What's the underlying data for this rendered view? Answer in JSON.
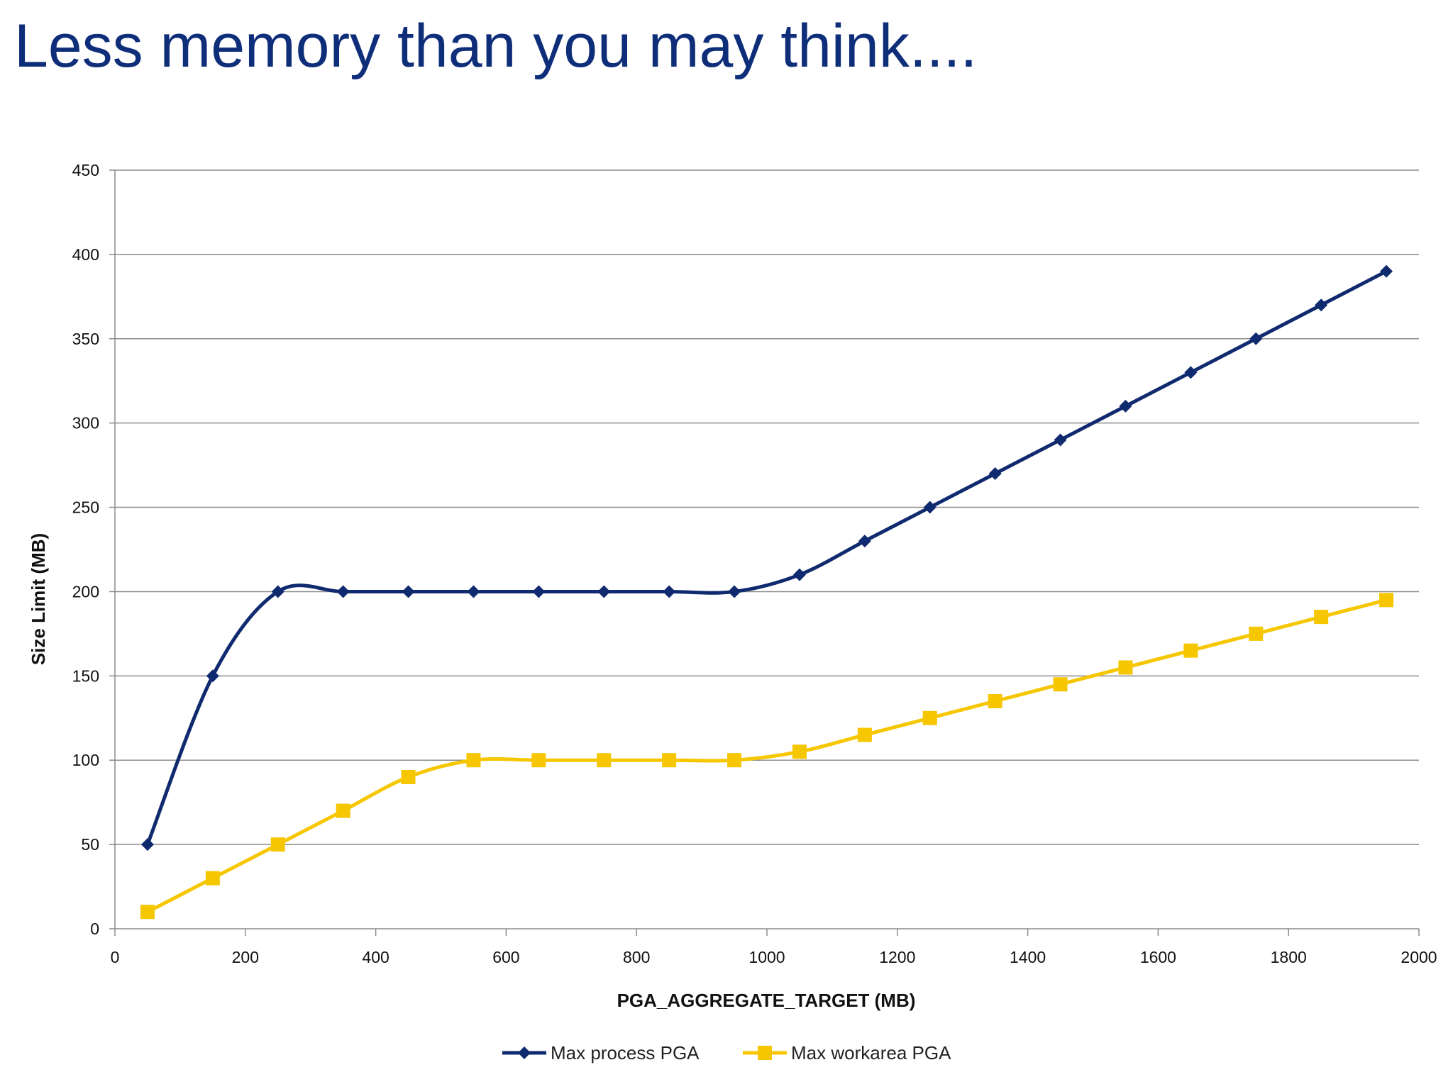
{
  "slide": {
    "title": "Less memory than you may think...."
  },
  "colors": {
    "series1": "#0f2a6e",
    "series2": "#f6c700",
    "grid": "#8c8c8c",
    "axis": "#8c8c8c"
  },
  "chart_data": {
    "type": "line",
    "title": "",
    "xlabel": "PGA_AGGREGATE_TARGET (MB)",
    "ylabel": "Size Limit (MB)",
    "xlim": [
      0,
      2000
    ],
    "ylim": [
      0,
      450
    ],
    "x_ticks": [
      0,
      200,
      400,
      600,
      800,
      1000,
      1200,
      1400,
      1600,
      1800,
      2000
    ],
    "y_ticks": [
      0,
      50,
      100,
      150,
      200,
      250,
      300,
      350,
      400,
      450
    ],
    "grid": "horizontal",
    "legend_position": "bottom",
    "smooth": true,
    "x": [
      50,
      150,
      250,
      350,
      450,
      550,
      650,
      750,
      850,
      950,
      1050,
      1150,
      1250,
      1350,
      1450,
      1550,
      1650,
      1750,
      1850,
      1950
    ],
    "series": [
      {
        "name": "Max process PGA",
        "marker": "diamond",
        "values": [
          50,
          150,
          200,
          200,
          200,
          200,
          200,
          200,
          200,
          200,
          210,
          230,
          250,
          270,
          290,
          310,
          330,
          350,
          370,
          390
        ]
      },
      {
        "name": "Max workarea PGA",
        "marker": "square",
        "values": [
          10,
          30,
          50,
          70,
          90,
          100,
          100,
          100,
          100,
          100,
          105,
          115,
          125,
          135,
          145,
          155,
          165,
          175,
          185,
          195
        ]
      }
    ]
  }
}
